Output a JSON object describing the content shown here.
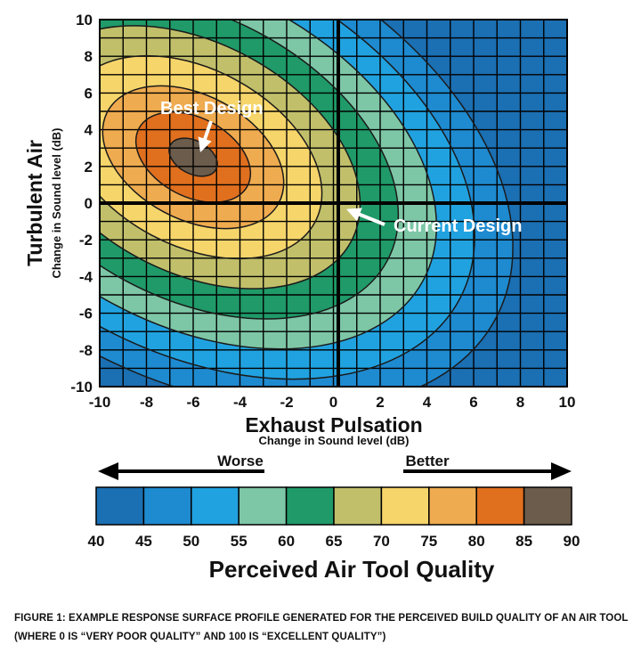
{
  "chart_data": {
    "type": "contour",
    "xlabel": "Exhaust Pulsation",
    "xsublabel": "Change in Sound level (dB)",
    "ylabel": "Turbulent Air",
    "ysublabel": "Change in Sound level (dB)",
    "xlim": [
      -10,
      10
    ],
    "ylim": [
      -10,
      10
    ],
    "x_ticks": [
      "-10",
      "-8",
      "-6",
      "-4",
      "-2",
      "0",
      "2",
      "4",
      "6",
      "8",
      "10"
    ],
    "y_ticks": [
      "10",
      "8",
      "6",
      "4",
      "2",
      "0",
      "-2",
      "-4",
      "-6",
      "-8",
      "-10"
    ],
    "grid": true,
    "optimum": {
      "x": -6,
      "y": 2.5,
      "value": 90
    },
    "annotations": [
      {
        "text": "Best Design",
        "x": -6,
        "y": 2.5
      },
      {
        "text": "Current Design",
        "x": 0,
        "y": 0
      }
    ],
    "color_scale": {
      "title": "Perceived Air Tool Quality",
      "tick_labels": [
        "40",
        "45",
        "50",
        "55",
        "60",
        "65",
        "70",
        "75",
        "80",
        "85",
        "90"
      ],
      "levels": [
        40,
        45,
        50,
        55,
        60,
        65,
        70,
        75,
        80,
        85,
        90
      ],
      "colors": [
        "#1b6fb3",
        "#1e8ad0",
        "#21a2e0",
        "#7dc6a6",
        "#1f9a68",
        "#c1bf6a",
        "#f6d56a",
        "#efab4f",
        "#e06f1e",
        "#6b5c4c"
      ]
    },
    "direction": {
      "left": "Worse",
      "right": "Better"
    }
  },
  "caption": "FIGURE 1: EXAMPLE RESPONSE  SURFACE PROFILE GENERATED FOR THE PERCEIVED BUILD QUALITY OF AN AIR TOOL (WHERE 0 IS “VERY POOR QUALITY” AND 100 IS “EXCELLENT QUALITY”)"
}
